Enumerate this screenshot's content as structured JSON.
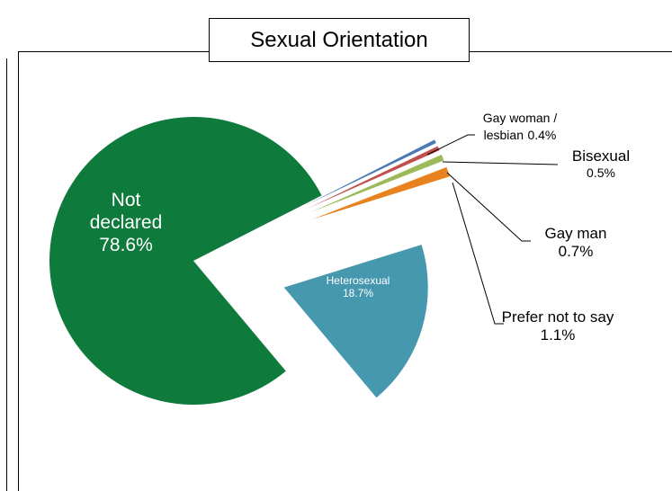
{
  "chart_data": {
    "type": "pie",
    "title": "Sexual Orientation",
    "categories": [
      "Gay woman / lesbian",
      "Bisexual",
      "Gay man",
      "Prefer not to say",
      "Heterosexual",
      "Not declared"
    ],
    "values": [
      0.4,
      0.5,
      0.7,
      1.1,
      18.7,
      78.6
    ],
    "value_labels": [
      "0.4%",
      "0.5%",
      "0.7%",
      "1.1%",
      "18.7%",
      "78.6%"
    ],
    "colors": [
      "#4a7ab5",
      "#c0504d",
      "#9bbb59",
      "#e8821e",
      "#4598ae",
      "#0e7a3b"
    ]
  }
}
